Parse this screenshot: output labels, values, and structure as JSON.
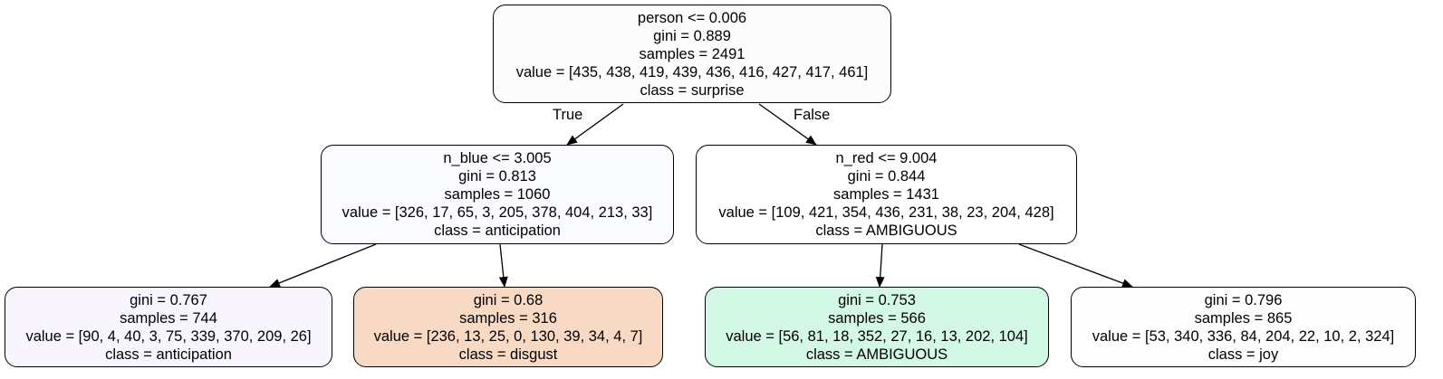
{
  "colors": {
    "root": "#fcfcfc",
    "n_blue_node": "#fafbfe",
    "n_red_node": "#ffffff",
    "leaf_anticipation": "#f8f5fe",
    "leaf_disgust": "#f7d9c4",
    "leaf_ambiguous": "#d3f8e5",
    "leaf_joy": "#fefefe"
  },
  "nodes": {
    "root": {
      "rule": "person <= 0.006",
      "gini": "gini = 0.889",
      "samples": "samples = 2491",
      "value": "value = [435, 438, 419, 439, 436, 416, 427, 417, 461]",
      "class": "class = surprise"
    },
    "left": {
      "rule": "n_blue <= 3.005",
      "gini": "gini = 0.813",
      "samples": "samples = 1060",
      "value": "value = [326, 17, 65, 3, 205, 378, 404, 213, 33]",
      "class": "class = anticipation"
    },
    "right": {
      "rule": "n_red <= 9.004",
      "gini": "gini = 0.844",
      "samples": "samples = 1431",
      "value": "value = [109, 421, 354, 436, 231, 38, 23, 204, 428]",
      "class": "class = AMBIGUOUS"
    },
    "leaf_ll": {
      "gini": "gini = 0.767",
      "samples": "samples = 744",
      "value": "value = [90, 4, 40, 3, 75, 339, 370, 209, 26]",
      "class": "class = anticipation"
    },
    "leaf_lr": {
      "gini": "gini = 0.68",
      "samples": "samples = 316",
      "value": "value = [236, 13, 25, 0, 130, 39, 34, 4, 7]",
      "class": "class = disgust"
    },
    "leaf_rl": {
      "gini": "gini = 0.753",
      "samples": "samples = 566",
      "value": "value = [56, 81, 18, 352, 27, 16, 13, 202, 104]",
      "class": "class = AMBIGUOUS"
    },
    "leaf_rr": {
      "gini": "gini = 0.796",
      "samples": "samples = 865",
      "value": "value = [53, 340, 336, 84, 204, 22, 10, 2, 324]",
      "class": "class = joy"
    }
  },
  "edge_labels": {
    "true": "True",
    "false": "False"
  }
}
